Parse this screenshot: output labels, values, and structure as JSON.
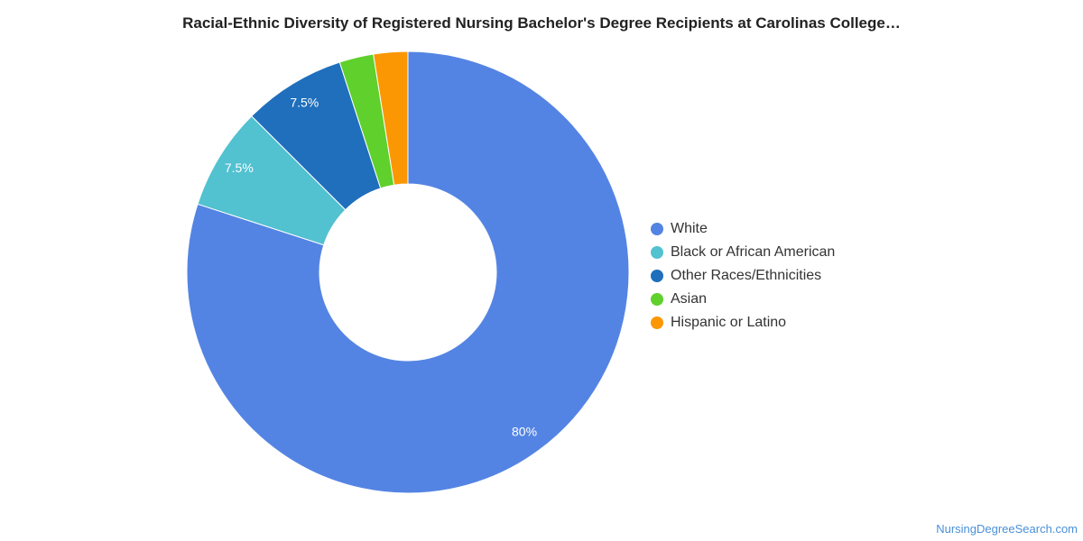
{
  "chart_data": {
    "type": "pie",
    "title": "Racial-Ethnic Diversity of Registered Nursing Bachelor's Degree Recipients at Carolinas College…",
    "donut": true,
    "legend_position": "right",
    "slices": [
      {
        "name": "White",
        "value": 80,
        "label": "80%",
        "color": "#5484e3"
      },
      {
        "name": "Black or African American",
        "value": 7.5,
        "label": "7.5%",
        "color": "#52c1d0"
      },
      {
        "name": "Other Races/Ethnicities",
        "value": 7.5,
        "label": "7.5%",
        "color": "#1f6fbc"
      },
      {
        "name": "Asian",
        "value": 2.5,
        "label": "",
        "color": "#5fd02c"
      },
      {
        "name": "Hispanic or Latino",
        "value": 2.5,
        "label": "",
        "color": "#fb9702"
      }
    ]
  },
  "footer": {
    "source": "NursingDegreeSearch.com"
  }
}
